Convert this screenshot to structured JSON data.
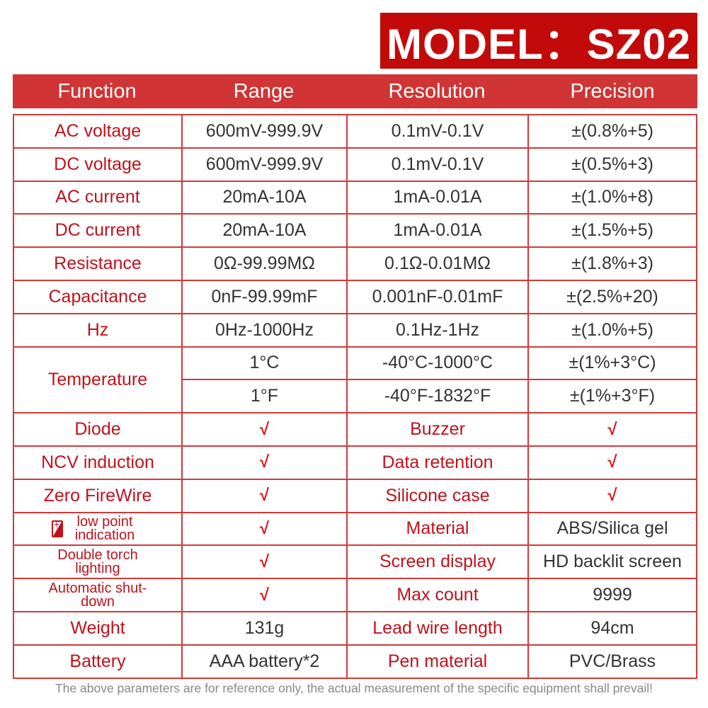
{
  "model": "MODEL：SZ02",
  "headers": [
    "Function",
    "Range",
    "Resolution",
    "Precision"
  ],
  "rows": [
    [
      "AC voltage",
      "600mV-999.9V",
      "0.1mV-0.1V",
      "±(0.8%+5)"
    ],
    [
      "DC voltage",
      "600mV-999.9V",
      "0.1mV-0.1V",
      "±(0.5%+3)"
    ],
    [
      "AC current",
      "20mA-10A",
      "1mA-0.01A",
      "±(1.0%+8)"
    ],
    [
      "DC current",
      "20mA-10A",
      "1mA-0.01A",
      "±(1.5%+5)"
    ],
    [
      "Resistance",
      "0Ω-99.99MΩ",
      "0.1Ω-0.01MΩ",
      "±(1.8%+3)"
    ],
    [
      "Capacitance",
      "0nF-99.99mF",
      "0.001nF-0.01mF",
      "±(2.5%+20)"
    ],
    [
      "Hz",
      "0Hz-1000Hz",
      "0.1Hz-1Hz",
      "±(1.0%+5)"
    ]
  ],
  "temperature": {
    "label": "Temperature",
    "rows": [
      [
        "1°C",
        "-40°C-1000°C",
        "±(1%+3°C)"
      ],
      [
        "1°F",
        "-40°F-1832°F",
        "±(1%+3°F)"
      ]
    ]
  },
  "features": [
    [
      "Diode",
      "√",
      "Buzzer",
      "√"
    ],
    [
      "NCV induction",
      "√",
      "Data retention",
      "√"
    ],
    [
      "Zero FireWire",
      "√",
      "Silicone case",
      "√"
    ],
    [
      "low point indication",
      "√",
      "Material",
      "ABS/Silica gel"
    ],
    [
      "Double torch lighting",
      "√",
      "Screen display",
      "HD backlit screen"
    ],
    [
      "Automatic shut-down",
      "√",
      "Max count",
      "9999"
    ],
    [
      "Weight",
      "131g",
      "Lead wire length",
      "94cm"
    ],
    [
      "Battery",
      "AAA battery*2",
      "Pen material",
      "PVC/Brass"
    ]
  ],
  "footer": "The above parameters are for reference only, the actual measurement of the specific equipment shall prevail!",
  "colors": {
    "accent": "#c20a0a",
    "header": "#d03434"
  }
}
